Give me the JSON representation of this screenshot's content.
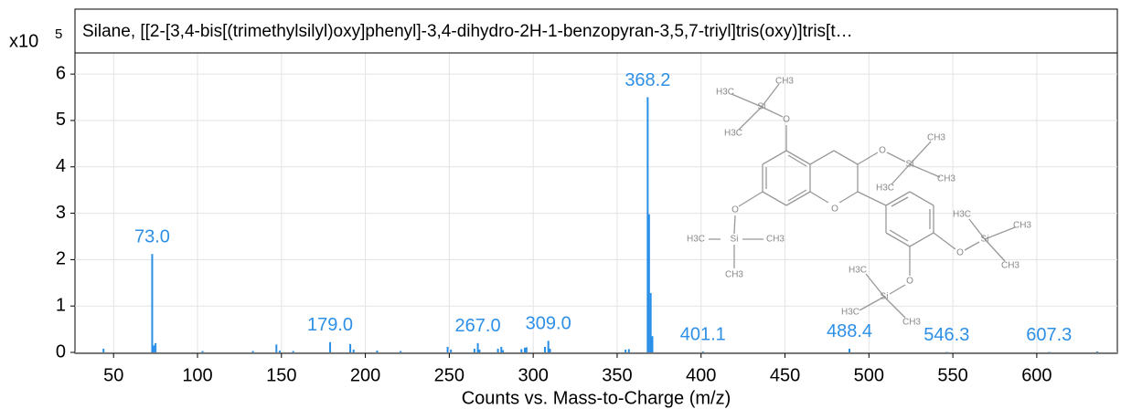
{
  "chart_data": {
    "type": "stick",
    "title": "Silane, [[2-[3,4-bis[(trimethylsilyl)oxy]phenyl]-3,4-dihydro-2H-1-benzopyran-3,5,7-triyl]tris(oxy)]tris[t…",
    "y_scale_label": "x10",
    "y_scale_exponent": "5",
    "xlabel": "Counts vs. Mass-to-Charge (m/z)",
    "color": "#2a8fe8",
    "x": [
      44,
      73.0,
      74,
      75,
      103,
      133,
      147,
      149,
      157,
      179.0,
      191,
      193,
      207,
      221,
      249,
      251,
      265,
      267.0,
      268,
      279,
      281,
      282,
      293,
      295,
      296,
      307,
      309.0,
      310,
      355,
      357,
      368.2,
      369,
      370,
      371,
      401.1,
      488.4,
      546.3,
      607.3,
      636
    ],
    "values": [
      0.08,
      2.12,
      0.15,
      0.2,
      0.03,
      0.03,
      0.17,
      0.04,
      0.03,
      0.22,
      0.18,
      0.06,
      0.04,
      0.03,
      0.12,
      0.06,
      0.08,
      0.2,
      0.06,
      0.08,
      0.12,
      0.05,
      0.07,
      0.1,
      0.11,
      0.12,
      0.25,
      0.08,
      0.06,
      0.07,
      5.5,
      2.98,
      1.28,
      0.35,
      0.02,
      0.08,
      0.01,
      0.01,
      0.02
    ],
    "x_labels": [
      null,
      "73.0",
      null,
      null,
      null,
      null,
      null,
      null,
      null,
      "179.0",
      null,
      null,
      null,
      null,
      null,
      null,
      null,
      "267.0",
      null,
      null,
      null,
      null,
      null,
      null,
      null,
      null,
      "309.0",
      null,
      null,
      null,
      "368.2",
      null,
      null,
      null,
      "401.1",
      "488.4",
      "546.3",
      "607.3",
      null
    ],
    "xlim": [
      27,
      648
    ],
    "xticks": [
      50,
      100,
      150,
      200,
      250,
      300,
      350,
      400,
      450,
      500,
      550,
      600
    ],
    "ylim": [
      0,
      7.4
    ],
    "yticks": [
      0,
      1,
      2,
      3,
      4,
      5,
      6
    ],
    "grid": true
  },
  "structure": {
    "atoms": [
      "H3C",
      "CH3",
      "Si",
      "H3C",
      "O",
      "O",
      "O",
      "Si",
      "CH3",
      "CH3",
      "H3C",
      "O",
      "Si",
      "H3C",
      "CH3",
      "CH3",
      "O",
      "Si",
      "H3C",
      "CH3",
      "CH3",
      "O",
      "Si",
      "H3C",
      "H3C",
      "CH3"
    ]
  }
}
